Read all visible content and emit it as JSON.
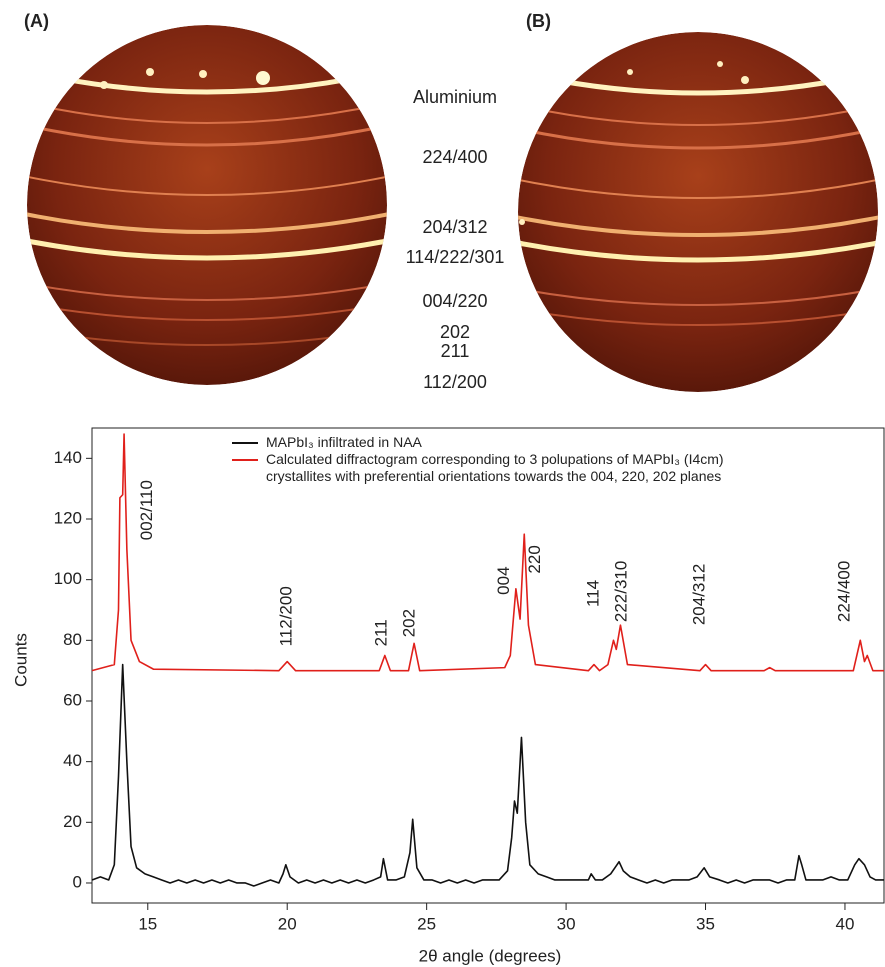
{
  "panels": [
    {
      "label": "(A)"
    },
    {
      "label": "(B)"
    }
  ],
  "ring_labels": [
    "Aluminium",
    "224/400",
    "204/312",
    "114/222/301",
    "004/220",
    "202",
    "211",
    "112/200"
  ],
  "chart_data": {
    "type": "line",
    "xlabel": "2θ angle (degrees)",
    "ylabel": "Counts",
    "xlim": [
      13,
      41.4
    ],
    "ylim": [
      -6.6,
      150
    ],
    "xticks": [
      15,
      20,
      25,
      30,
      35,
      40
    ],
    "yticks": [
      0,
      20,
      40,
      60,
      80,
      100,
      120,
      140
    ],
    "series": [
      {
        "name": "MAPbI₃ infiltrated in NAA",
        "color": "#111111",
        "x": [
          13.0,
          13.3,
          13.6,
          13.8,
          13.95,
          14.1,
          14.25,
          14.4,
          14.6,
          14.9,
          15.2,
          15.5,
          15.8,
          16.1,
          16.4,
          16.7,
          17.0,
          17.3,
          17.6,
          17.9,
          18.2,
          18.5,
          18.8,
          19.1,
          19.4,
          19.7,
          19.85,
          19.95,
          20.1,
          20.4,
          20.7,
          21.0,
          21.3,
          21.6,
          21.9,
          22.2,
          22.5,
          22.8,
          23.1,
          23.35,
          23.45,
          23.6,
          23.9,
          24.2,
          24.4,
          24.5,
          24.65,
          24.9,
          25.2,
          25.5,
          25.8,
          26.1,
          26.4,
          26.7,
          27.0,
          27.3,
          27.6,
          27.9,
          28.05,
          28.15,
          28.25,
          28.4,
          28.55,
          28.7,
          29.0,
          29.3,
          29.6,
          29.9,
          30.2,
          30.5,
          30.8,
          30.9,
          31.05,
          31.3,
          31.6,
          31.75,
          31.9,
          32.05,
          32.3,
          32.6,
          32.9,
          33.2,
          33.5,
          33.8,
          34.1,
          34.4,
          34.7,
          34.95,
          35.15,
          35.5,
          35.8,
          36.1,
          36.4,
          36.7,
          37.0,
          37.3,
          37.6,
          37.9,
          38.2,
          38.35,
          38.45,
          38.6,
          38.9,
          39.2,
          39.5,
          39.8,
          40.1,
          40.35,
          40.5,
          40.7,
          40.9,
          41.1,
          41.4
        ],
        "values": [
          1,
          2,
          1,
          6,
          35,
          72,
          40,
          12,
          5,
          3,
          2,
          1,
          0,
          1,
          0,
          1,
          0,
          1,
          0,
          1,
          0,
          0,
          -1,
          0,
          1,
          0,
          3,
          6,
          2,
          0,
          1,
          0,
          1,
          0,
          1,
          0,
          1,
          0,
          1,
          2,
          8,
          1,
          1,
          2,
          10,
          21,
          5,
          1,
          1,
          0,
          1,
          0,
          1,
          0,
          1,
          1,
          1,
          4,
          15,
          27,
          23,
          48,
          20,
          6,
          3,
          2,
          1,
          1,
          1,
          1,
          1,
          3,
          1,
          1,
          3,
          5,
          7,
          4,
          2,
          1,
          0,
          1,
          0,
          1,
          1,
          1,
          2,
          5,
          2,
          1,
          0,
          1,
          0,
          1,
          1,
          1,
          0,
          1,
          1,
          9,
          6,
          1,
          1,
          1,
          2,
          1,
          1,
          6,
          8,
          6,
          2,
          1,
          1
        ]
      },
      {
        "name": "Calculated diffractogram corresponding to 3 polupations of MAPbI₃ (I4cm) crystallites with preferential orientations towards the 004, 220, 202 planes",
        "color": "#e0201b",
        "x": [
          13,
          13.8,
          13.95,
          14.0,
          14.1,
          14.15,
          14.25,
          14.4,
          14.7,
          15.2,
          19.7,
          20.0,
          20.3,
          23.3,
          23.5,
          23.7,
          24.35,
          24.55,
          24.75,
          27.8,
          28.0,
          28.2,
          28.35,
          28.5,
          28.65,
          28.9,
          30.8,
          31.0,
          31.2,
          31.5,
          31.7,
          31.8,
          31.95,
          32.2,
          34.8,
          35.0,
          35.2,
          37.1,
          37.3,
          37.5,
          40.3,
          40.55,
          40.7,
          40.8,
          41.0,
          41.4
        ],
        "values": [
          70,
          72,
          90,
          127,
          128,
          148,
          110,
          80,
          73,
          70.5,
          70,
          73,
          70,
          70,
          75,
          70,
          70,
          79,
          70,
          71,
          75,
          97,
          87,
          115,
          85,
          72,
          70,
          72,
          70,
          72,
          80,
          77,
          85,
          72,
          70,
          72,
          70,
          70,
          71,
          70,
          70,
          80,
          73,
          75,
          70,
          70
        ]
      }
    ],
    "annotations": [
      {
        "text": "002/110",
        "x": 15.0,
        "y": 113
      },
      {
        "text": "112/200",
        "x": 20.0,
        "y": 78
      },
      {
        "text": "211",
        "x": 23.4,
        "y": 78
      },
      {
        "text": "202",
        "x": 24.4,
        "y": 81
      },
      {
        "text": "004",
        "x": 27.8,
        "y": 95
      },
      {
        "text": "220",
        "x": 28.9,
        "y": 102
      },
      {
        "text": "114",
        "x": 31.0,
        "y": 91
      },
      {
        "text": "222/310",
        "x": 32.0,
        "y": 86
      },
      {
        "text": "204/312",
        "x": 34.8,
        "y": 85
      },
      {
        "text": "224/400",
        "x": 40.0,
        "y": 86
      }
    ]
  }
}
